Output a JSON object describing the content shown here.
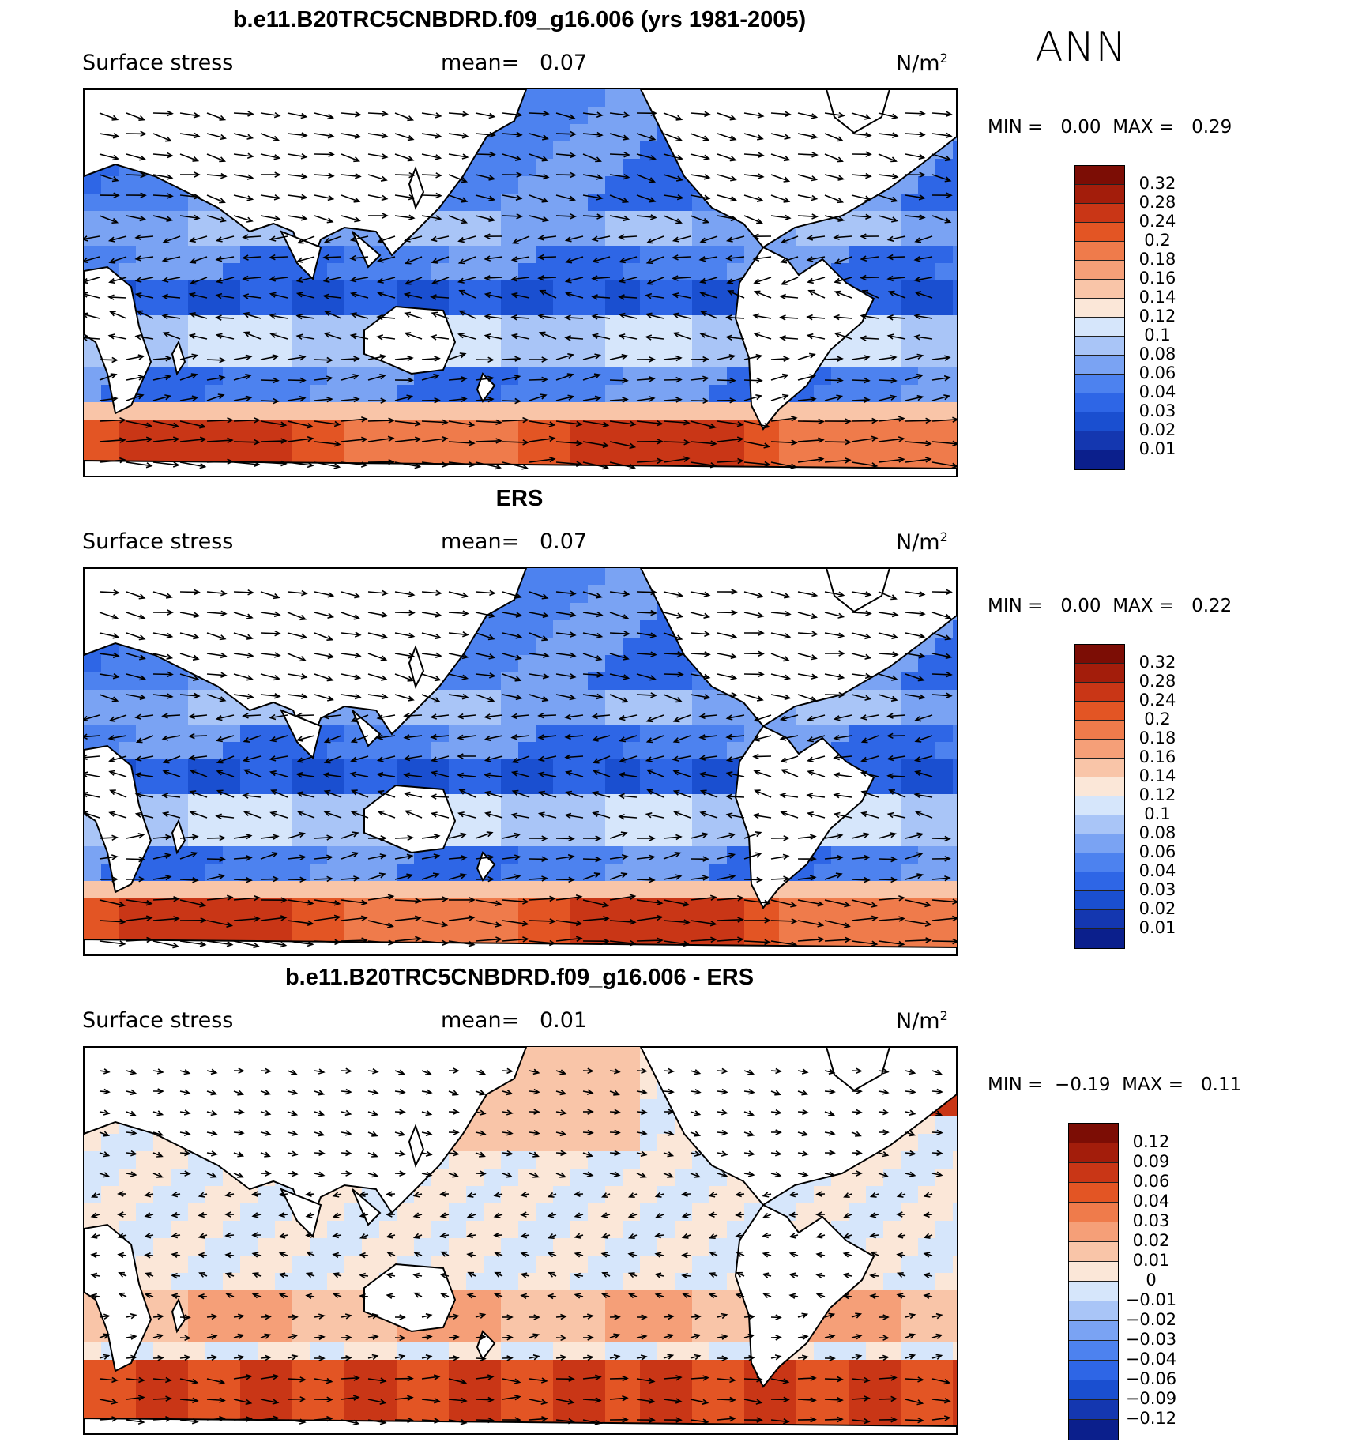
{
  "season": "ANN",
  "colors": {
    "scale": [
      "#0b1f8c",
      "#1437b0",
      "#1a4fd0",
      "#2e66e6",
      "#4d82ef",
      "#7aa3f3",
      "#a9c5f7",
      "#d6e6fb",
      "#fbe7d8",
      "#f9c5a8",
      "#f59f78",
      "#ef7b4b",
      "#e35524",
      "#c93616",
      "#a31d0b",
      "#7c0d05"
    ]
  },
  "panels": [
    {
      "title": "b.e11.B20TRC5CNBDRD.f09_g16.006 (yrs 1981-2005)",
      "variable": "Surface stress",
      "mean_label": "mean=",
      "mean_value": "0.07",
      "units": "N/m",
      "units_power": "2",
      "min_label": "MIN =",
      "min_value": "0.00",
      "max_label": "MAX =",
      "max_value": "0.29",
      "colorbar_labels": [
        "0.32",
        "0.28",
        "0.24",
        "0.2",
        "0.18",
        "0.16",
        "0.14",
        "0.12",
        "0.1",
        "0.08",
        "0.06",
        "0.04",
        "0.03",
        "0.02",
        "0.01"
      ]
    },
    {
      "title": "ERS",
      "variable": "Surface stress",
      "mean_label": "mean=",
      "mean_value": "0.07",
      "units": "N/m",
      "units_power": "2",
      "min_label": "MIN =",
      "min_value": "0.00",
      "max_label": "MAX =",
      "max_value": "0.22",
      "colorbar_labels": [
        "0.32",
        "0.28",
        "0.24",
        "0.2",
        "0.18",
        "0.16",
        "0.14",
        "0.12",
        "0.1",
        "0.08",
        "0.06",
        "0.04",
        "0.03",
        "0.02",
        "0.01"
      ]
    },
    {
      "title": "b.e11.B20TRC5CNBDRD.f09_g16.006 - ERS",
      "variable": "Surface stress",
      "mean_label": "mean=",
      "mean_value": "0.01",
      "units": "N/m",
      "units_power": "2",
      "min_label": "MIN =",
      "min_value": "−0.19",
      "max_label": "MAX =",
      "max_value": "0.11",
      "colorbar_labels": [
        "0.12",
        "0.09",
        "0.06",
        "0.04",
        "0.03",
        "0.02",
        "0.01",
        "0",
        "−0.01",
        "−0.02",
        "−0.03",
        "−0.04",
        "−0.06",
        "−0.09",
        "−0.12"
      ]
    }
  ]
}
